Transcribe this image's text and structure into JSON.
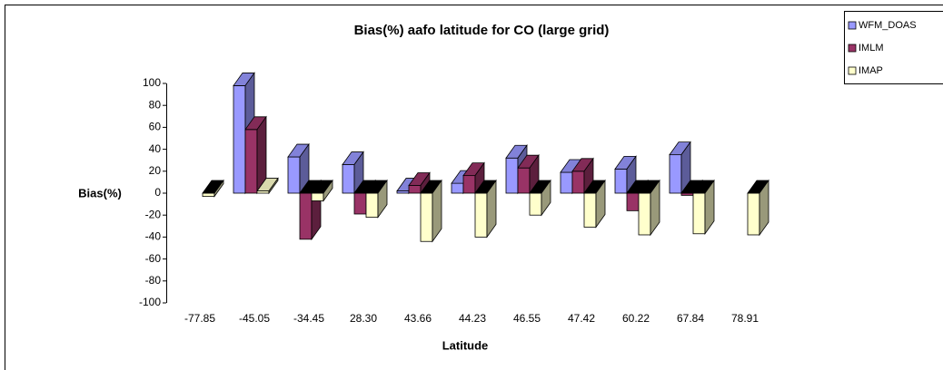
{
  "chart_data": {
    "type": "bar3d",
    "title": "Bias(%) aafo latitude for CO (large grid)",
    "x_label": "Latitude",
    "y_label": "Bias(%)",
    "categories": [
      "-77.85",
      "-45.05",
      "-34.45",
      "28.30",
      "43.66",
      "44.23",
      "46.55",
      "47.42",
      "60.22",
      "67.84",
      "78.91"
    ],
    "series": [
      {
        "name": "WFM_DOAS",
        "color": "#9999ff",
        "values": [
          null,
          98,
          33,
          26,
          2,
          9,
          32,
          19,
          22,
          35,
          null
        ]
      },
      {
        "name": "IMLM",
        "color": "#993366",
        "values": [
          null,
          58,
          -42,
          -19,
          7,
          16,
          23,
          20,
          -16,
          -2,
          null
        ]
      },
      {
        "name": "IMAP",
        "color": "#ffffcc",
        "values": [
          -3,
          2,
          -7,
          -22,
          -44,
          -40,
          -20,
          -31,
          -38,
          -37,
          -38
        ]
      }
    ],
    "ylim": [
      -100,
      100
    ],
    "yticks": [
      -100,
      -80,
      -60,
      -40,
      -20,
      0,
      20,
      40,
      60,
      80,
      100
    ],
    "legend": "top-right"
  }
}
